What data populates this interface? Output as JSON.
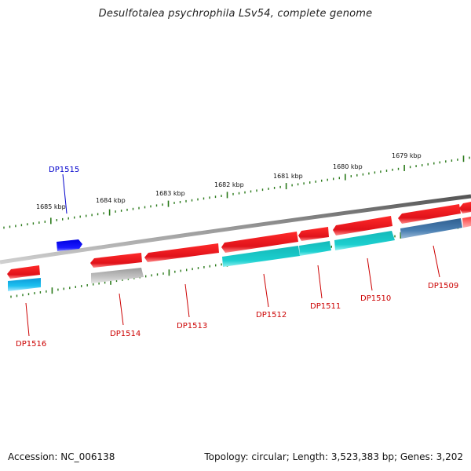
{
  "title": "Desulfotalea psychrophila LSv54, complete genome",
  "footer": {
    "accession": "Accession: NC_006138",
    "topology": "Topology: circular; Length: 3,523,383 bp; Genes: 3,202"
  },
  "colors": {
    "backbone": "#7a7a7a",
    "ticks": "#2a7a1a",
    "gene_red": "#e8141a",
    "gene_cyan": "#19c4c4",
    "gene_blue": "#1010ee",
    "gene_grey": "#b0b0b0",
    "gene_steel": "#3f6e9e",
    "label_red": "#cc0000",
    "label_blue": "#0000cc"
  },
  "kbp_labels": [
    "1685 kbp",
    "1684 kbp",
    "1683 kbp",
    "1682 kbp",
    "1681 kbp",
    "1680 kbp",
    "1679 kbp"
  ],
  "gene_labels": [
    "DP1515",
    "DP1516",
    "DP1514",
    "DP1513",
    "DP1512",
    "DP1511",
    "DP1510",
    "DP1509"
  ]
}
